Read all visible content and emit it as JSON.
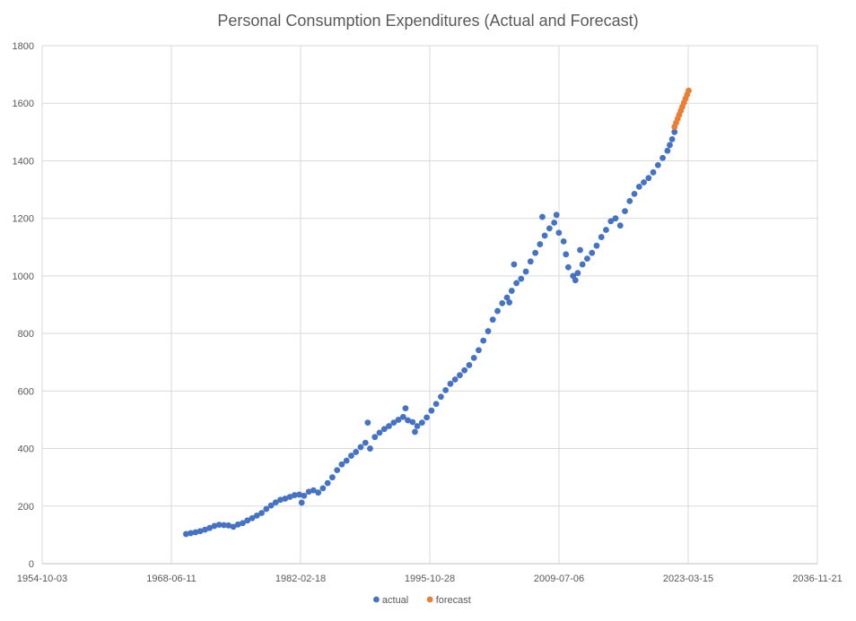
{
  "chart_data": {
    "type": "scatter",
    "title": "Personal Consumption Expenditures (Actual and Forecast)",
    "xlabel": "",
    "ylabel": "",
    "x_axis": {
      "type": "date",
      "min": "1954-10-03",
      "max": "2036-11-21",
      "ticks": [
        "1954-10-03",
        "1968-06-11",
        "1982-02-18",
        "1995-10-28",
        "2009-07-06",
        "2023-03-15",
        "2036-11-21"
      ]
    },
    "y_axis": {
      "min": 0,
      "max": 1800,
      "ticks": [
        0,
        200,
        400,
        600,
        800,
        1000,
        1200,
        1400,
        1600,
        1800
      ]
    },
    "grid": true,
    "legend_position": "bottom",
    "series": [
      {
        "name": "actual",
        "color": "#4472C4",
        "points": [
          [
            "1970-01-01",
            103
          ],
          [
            "1970-07-01",
            106
          ],
          [
            "1971-01-01",
            109
          ],
          [
            "1971-07-01",
            113
          ],
          [
            "1972-01-01",
            118
          ],
          [
            "1972-07-01",
            124
          ],
          [
            "1973-01-01",
            131
          ],
          [
            "1973-07-01",
            135
          ],
          [
            "1974-01-01",
            134
          ],
          [
            "1974-07-01",
            133
          ],
          [
            "1975-01-01",
            128
          ],
          [
            "1975-07-01",
            136
          ],
          [
            "1976-01-01",
            141
          ],
          [
            "1976-07-01",
            150
          ],
          [
            "1977-01-01",
            158
          ],
          [
            "1977-07-01",
            167
          ],
          [
            "1978-01-01",
            176
          ],
          [
            "1978-07-01",
            190
          ],
          [
            "1979-01-01",
            202
          ],
          [
            "1979-07-01",
            213
          ],
          [
            "1980-01-01",
            222
          ],
          [
            "1980-07-01",
            226
          ],
          [
            "1981-01-01",
            232
          ],
          [
            "1981-07-01",
            238
          ],
          [
            "1982-01-01",
            240
          ],
          [
            "1982-04-01",
            212
          ],
          [
            "1982-07-01",
            236
          ],
          [
            "1983-01-01",
            250
          ],
          [
            "1983-07-01",
            255
          ],
          [
            "1984-01-01",
            247
          ],
          [
            "1984-07-01",
            262
          ],
          [
            "1985-01-01",
            280
          ],
          [
            "1985-07-01",
            300
          ],
          [
            "1986-01-01",
            325
          ],
          [
            "1986-07-01",
            345
          ],
          [
            "1987-01-01",
            358
          ],
          [
            "1987-07-01",
            375
          ],
          [
            "1988-01-01",
            388
          ],
          [
            "1988-07-01",
            405
          ],
          [
            "1989-01-01",
            420
          ],
          [
            "1989-04-01",
            490
          ],
          [
            "1989-07-01",
            400
          ],
          [
            "1990-01-01",
            440
          ],
          [
            "1990-07-01",
            455
          ],
          [
            "1991-01-01",
            468
          ],
          [
            "1991-07-01",
            478
          ],
          [
            "1992-01-01",
            490
          ],
          [
            "1992-07-01",
            500
          ],
          [
            "1993-01-01",
            510
          ],
          [
            "1993-04-01",
            540
          ],
          [
            "1993-07-01",
            498
          ],
          [
            "1994-01-01",
            492
          ],
          [
            "1994-04-01",
            458
          ],
          [
            "1994-07-01",
            478
          ],
          [
            "1995-01-01",
            490
          ],
          [
            "1995-07-01",
            508
          ],
          [
            "1996-01-01",
            532
          ],
          [
            "1996-07-01",
            555
          ],
          [
            "1997-01-01",
            580
          ],
          [
            "1997-07-01",
            603
          ],
          [
            "1998-01-01",
            625
          ],
          [
            "1998-07-01",
            640
          ],
          [
            "1999-01-01",
            655
          ],
          [
            "1999-07-01",
            672
          ],
          [
            "2000-01-01",
            690
          ],
          [
            "2000-07-01",
            715
          ],
          [
            "2001-01-01",
            742
          ],
          [
            "2001-07-01",
            775
          ],
          [
            "2002-01-01",
            808
          ],
          [
            "2002-07-01",
            848
          ],
          [
            "2003-01-01",
            878
          ],
          [
            "2003-07-01",
            905
          ],
          [
            "2004-01-01",
            925
          ],
          [
            "2004-04-01",
            908
          ],
          [
            "2004-07-01",
            948
          ],
          [
            "2004-10-01",
            1040
          ],
          [
            "2005-01-01",
            975
          ],
          [
            "2005-07-01",
            990
          ],
          [
            "2006-01-01",
            1015
          ],
          [
            "2006-07-01",
            1050
          ],
          [
            "2007-01-01",
            1080
          ],
          [
            "2007-07-01",
            1110
          ],
          [
            "2007-10-01",
            1205
          ],
          [
            "2008-01-01",
            1140
          ],
          [
            "2008-07-01",
            1165
          ],
          [
            "2009-01-01",
            1185
          ],
          [
            "2009-04-01",
            1212
          ],
          [
            "2009-07-01",
            1150
          ],
          [
            "2010-01-01",
            1120
          ],
          [
            "2010-04-01",
            1075
          ],
          [
            "2010-07-01",
            1030
          ],
          [
            "2011-01-01",
            1000
          ],
          [
            "2011-04-01",
            985
          ],
          [
            "2011-07-01",
            1010
          ],
          [
            "2011-10-01",
            1090
          ],
          [
            "2012-01-01",
            1040
          ],
          [
            "2012-07-01",
            1060
          ],
          [
            "2013-01-01",
            1080
          ],
          [
            "2013-07-01",
            1105
          ],
          [
            "2014-01-01",
            1135
          ],
          [
            "2014-07-01",
            1160
          ],
          [
            "2015-01-01",
            1190
          ],
          [
            "2015-07-01",
            1200
          ],
          [
            "2016-01-01",
            1175
          ],
          [
            "2016-07-01",
            1225
          ],
          [
            "2017-01-01",
            1260
          ],
          [
            "2017-07-01",
            1285
          ],
          [
            "2018-01-01",
            1310
          ],
          [
            "2018-07-01",
            1325
          ],
          [
            "2019-01-01",
            1340
          ],
          [
            "2019-07-01",
            1360
          ],
          [
            "2020-01-01",
            1385
          ],
          [
            "2020-07-01",
            1410
          ],
          [
            "2021-01-01",
            1435
          ],
          [
            "2021-04-01",
            1455
          ],
          [
            "2021-07-01",
            1475
          ],
          [
            "2021-10-01",
            1500
          ]
        ]
      },
      {
        "name": "forecast",
        "color": "#ED7D31",
        "points": [
          [
            "2021-10-01",
            1518
          ],
          [
            "2021-12-01",
            1532
          ],
          [
            "2022-02-01",
            1546
          ],
          [
            "2022-04-01",
            1560
          ],
          [
            "2022-06-01",
            1574
          ],
          [
            "2022-08-01",
            1588
          ],
          [
            "2022-10-01",
            1602
          ],
          [
            "2022-12-01",
            1616
          ],
          [
            "2023-02-01",
            1630
          ],
          [
            "2023-04-01",
            1644
          ]
        ]
      }
    ]
  }
}
